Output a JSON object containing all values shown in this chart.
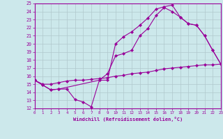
{
  "xlabel": "Windchill (Refroidissement éolien,°C)",
  "xlim": [
    0,
    23
  ],
  "ylim": [
    12,
    25
  ],
  "xticks": [
    0,
    1,
    2,
    3,
    4,
    5,
    6,
    7,
    8,
    9,
    10,
    11,
    12,
    13,
    14,
    15,
    16,
    17,
    18,
    19,
    20,
    21,
    22,
    23
  ],
  "yticks": [
    12,
    13,
    14,
    15,
    16,
    17,
    18,
    19,
    20,
    21,
    22,
    23,
    24,
    25
  ],
  "bg_color": "#cce8eb",
  "line_color": "#990099",
  "grid_color": "#b0c8cc",
  "line1_x": [
    0,
    1,
    2,
    3,
    4,
    5,
    6,
    7,
    8,
    9,
    10,
    11,
    12,
    13,
    14,
    15,
    16,
    17,
    18,
    19,
    20,
    21,
    22,
    23
  ],
  "line1_y": [
    15.5,
    14.9,
    14.3,
    14.4,
    14.4,
    13.1,
    12.8,
    12.2,
    15.5,
    15.5,
    20.0,
    20.9,
    21.5,
    22.3,
    23.2,
    24.3,
    24.6,
    24.8,
    23.3,
    22.5,
    22.3,
    21.0,
    19.2,
    17.5
  ],
  "line2_x": [
    0,
    1,
    2,
    3,
    8,
    9,
    10,
    11,
    12,
    13,
    14,
    15,
    16,
    17,
    18,
    19,
    20,
    21,
    22,
    23
  ],
  "line2_y": [
    15.5,
    14.9,
    14.3,
    14.4,
    15.5,
    16.3,
    18.5,
    18.8,
    19.2,
    21.0,
    21.9,
    23.5,
    24.5,
    24.0,
    23.3,
    22.5,
    22.3,
    21.0,
    19.2,
    17.5
  ],
  "line3_x": [
    0,
    1,
    2,
    3,
    4,
    5,
    6,
    7,
    8,
    9,
    10,
    11,
    12,
    13,
    14,
    15,
    16,
    17,
    18,
    19,
    20,
    21,
    22,
    23
  ],
  "line3_y": [
    15.5,
    15.0,
    15.0,
    15.2,
    15.4,
    15.5,
    15.5,
    15.6,
    15.7,
    15.8,
    16.0,
    16.1,
    16.3,
    16.4,
    16.5,
    16.7,
    16.9,
    17.0,
    17.1,
    17.2,
    17.3,
    17.4,
    17.4,
    17.5
  ]
}
